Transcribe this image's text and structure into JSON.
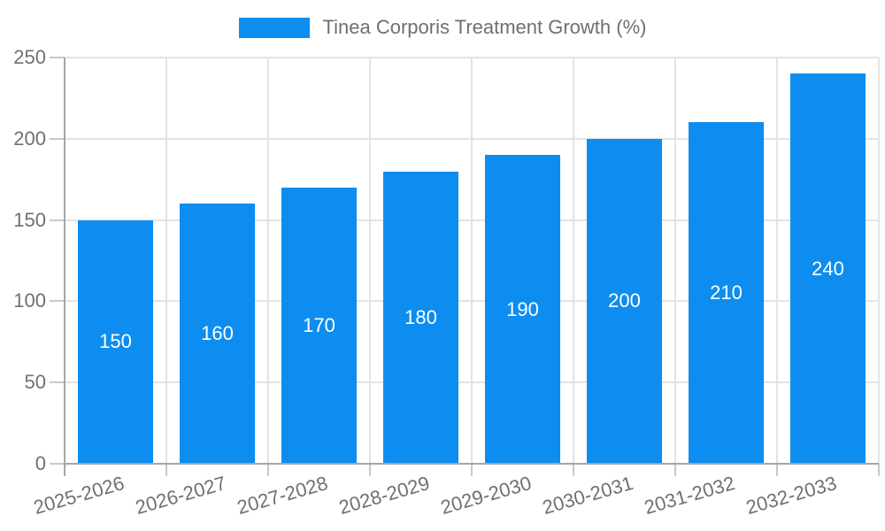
{
  "page": {
    "background": "#ffffff"
  },
  "legend": {
    "position": "top-center",
    "label": "Tinea Corporis Treatment Growth (%)",
    "swatch_color": "#0d8df0"
  },
  "chart_data": {
    "type": "bar",
    "title": "Tinea Corporis Treatment Growth (%)",
    "categories": [
      "2025-2026",
      "2026-2027",
      "2027-2028",
      "2028-2029",
      "2029-2030",
      "2030-2031",
      "2031-2032",
      "2032-2033"
    ],
    "values": [
      150,
      160,
      170,
      180,
      190,
      200,
      210,
      240
    ],
    "xlabel": "",
    "ylabel": "",
    "ylim": [
      0,
      250
    ],
    "yticks": [
      0,
      50,
      100,
      150,
      200,
      250
    ],
    "grid": true,
    "legend_position": "top",
    "x_label_rotation_deg": -16,
    "colors": {
      "bar": "#0d8df0",
      "value_label": "#ffffff",
      "axis_text": "#707070",
      "grid": "#e3e3e3",
      "axis_line": "#a6a6a6",
      "tick": "#c8c8c8"
    }
  }
}
